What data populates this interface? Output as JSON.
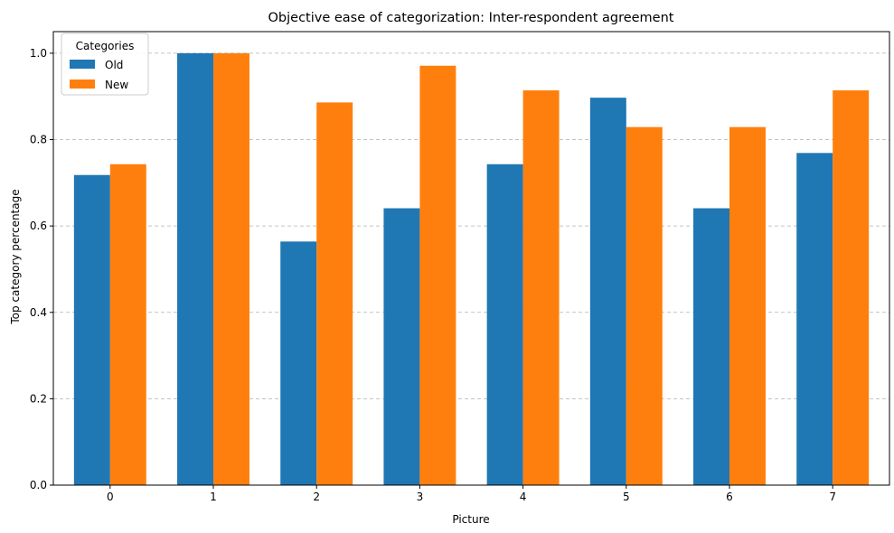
{
  "chart_data": {
    "type": "bar",
    "title": "Objective ease of categorization: Inter-respondent agreement",
    "xlabel": "Picture",
    "ylabel": "Top category percentage",
    "categories": [
      "0",
      "1",
      "2",
      "3",
      "4",
      "5",
      "6",
      "7"
    ],
    "series": [
      {
        "name": "Old",
        "color": "#1f77b4",
        "values": [
          0.718,
          1.0,
          0.564,
          0.641,
          0.743,
          0.897,
          0.641,
          0.769
        ]
      },
      {
        "name": "New",
        "color": "#ff7f0e",
        "values": [
          0.743,
          1.0,
          0.886,
          0.971,
          0.914,
          0.829,
          0.829,
          0.914
        ]
      }
    ],
    "ylim": [
      0,
      1.05
    ],
    "yticks": [
      "0.0",
      "0.2",
      "0.4",
      "0.6",
      "0.8",
      "1.0"
    ],
    "grid": "y-dashed",
    "legend": {
      "title": "Categories",
      "placement": "top-left"
    }
  }
}
